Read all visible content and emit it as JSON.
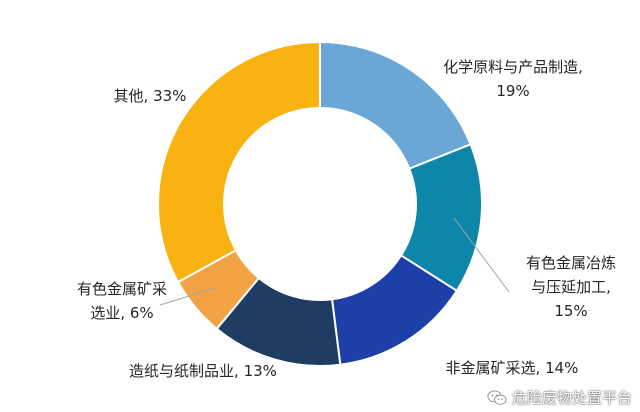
{
  "chart_data": {
    "type": "donut",
    "title": "",
    "slices": [
      {
        "label_lines": [
          "化学原料与产品制造,",
          "19%"
        ],
        "value": 19,
        "color": "#6aa6d6"
      },
      {
        "label_lines": [
          "有色金属冶炼",
          "与压延加工,",
          "15%"
        ],
        "value": 15,
        "color": "#0e86aa"
      },
      {
        "label_lines": [
          "非金属矿采选, 14%"
        ],
        "value": 14,
        "color": "#1c3fa8"
      },
      {
        "label_lines": [
          "造纸与纸制品业, 13%"
        ],
        "value": 13,
        "color": "#1f3d63"
      },
      {
        "label_lines": [
          "有色金属矿采",
          "选业, 6%"
        ],
        "value": 6,
        "color": "#f3a343"
      },
      {
        "label_lines": [
          "其他, 33%"
        ],
        "value": 33,
        "color": "#f8b211"
      }
    ]
  },
  "watermark": {
    "text": "危险废物处置平台",
    "icon": "wechat-icon"
  }
}
